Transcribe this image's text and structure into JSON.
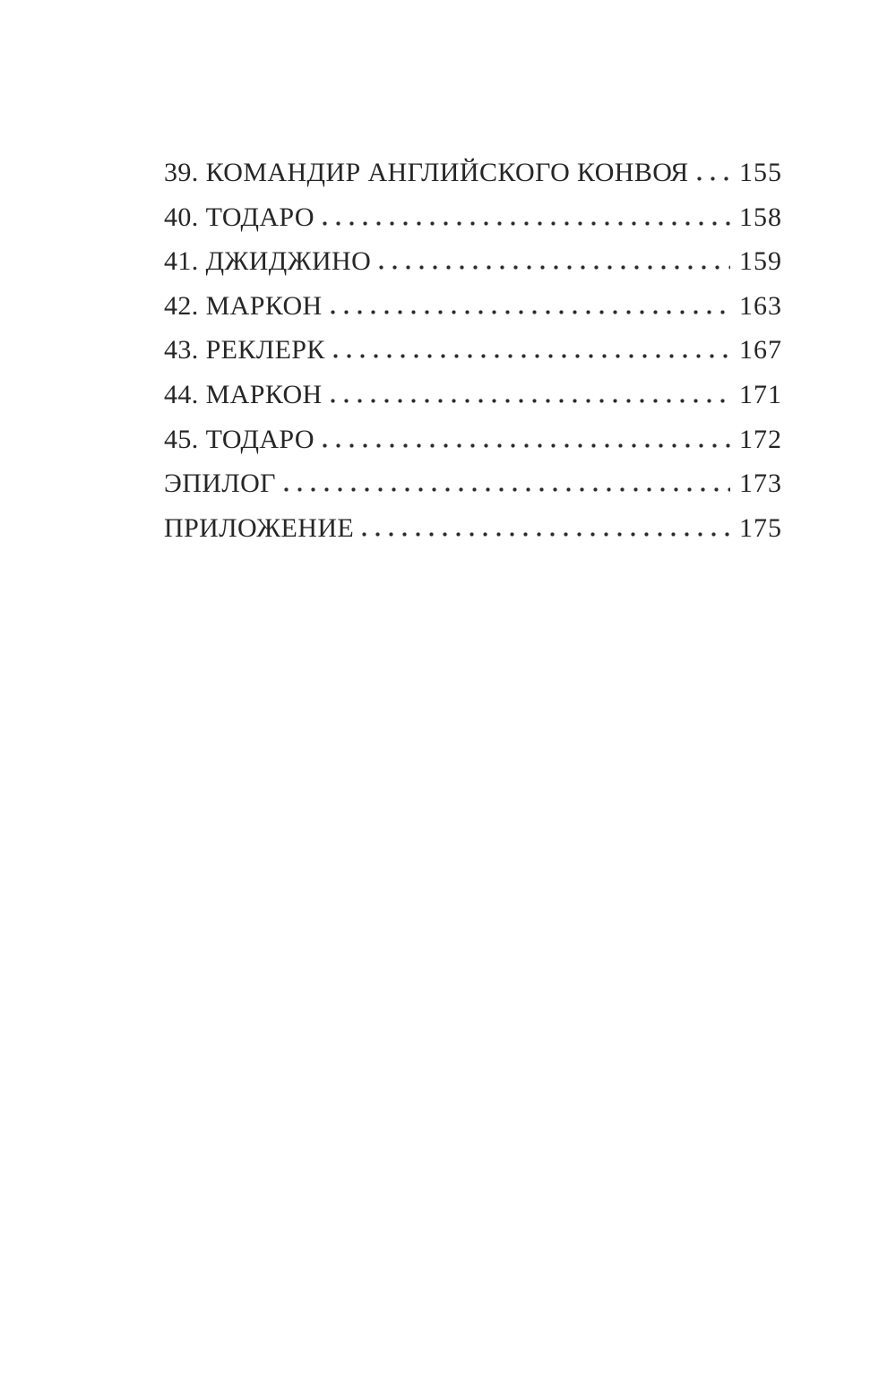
{
  "page": {
    "background_color": "#ffffff",
    "text_color": "#262626",
    "leader_dot_color": "#2b2b2b"
  },
  "toc": {
    "entries": [
      {
        "label": "39. КОМАНДИР АНГЛИЙСКОГО КОНВОЯ",
        "page": "155"
      },
      {
        "label": "40. ТОДАРО",
        "page": "158"
      },
      {
        "label": "41. ДЖИДЖИНО",
        "page": "159"
      },
      {
        "label": "42. МАРКОН",
        "page": "163"
      },
      {
        "label": "43. РЕКЛЕРК",
        "page": "167"
      },
      {
        "label": "44. МАРКОН",
        "page": "171"
      },
      {
        "label": "45. ТОДАРО",
        "page": "172"
      },
      {
        "label": "ЭПИЛОГ",
        "page": "173"
      },
      {
        "label": "ПРИЛОЖЕНИЕ",
        "page": "175"
      }
    ]
  }
}
